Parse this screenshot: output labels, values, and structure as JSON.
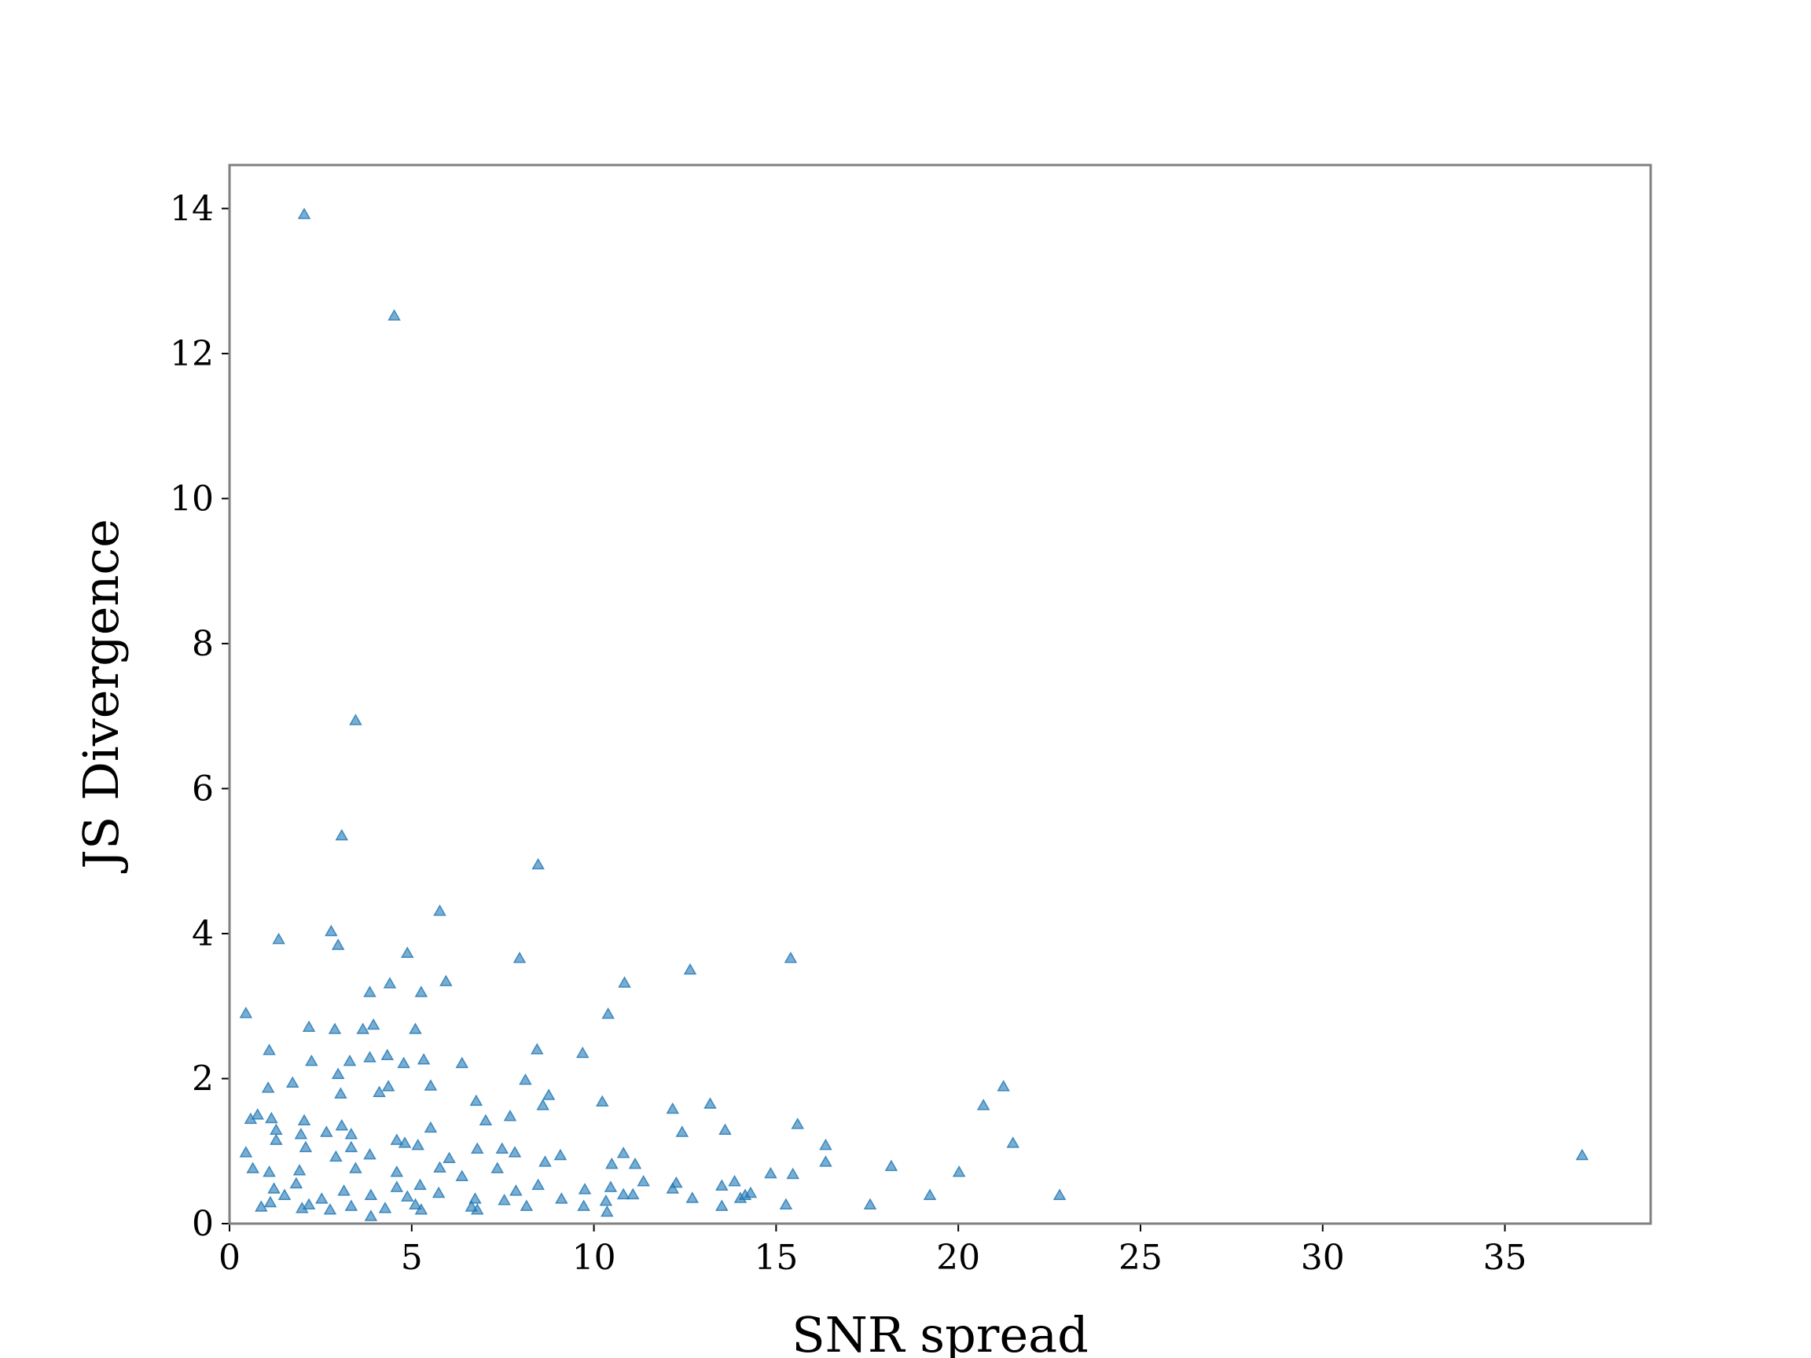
{
  "chart_data": {
    "type": "scatter",
    "x_label": "SNR spread",
    "y_label": "JS Divergence",
    "color": "#1f77b4",
    "marker": "triangle",
    "xlim": [
      0,
      39
    ],
    "ylim": [
      0,
      14.6
    ],
    "xticks": [
      0,
      5,
      10,
      15,
      20,
      25,
      30,
      35
    ],
    "yticks": [
      0,
      2,
      4,
      6,
      8,
      10,
      12,
      14
    ],
    "x": [
      2.05,
      4.52,
      3.46,
      3.08,
      8.47,
      5.77,
      1.35,
      2.79,
      2.98,
      4.88,
      7.96,
      15.4,
      12.64,
      10.84,
      5.94,
      4.4,
      3.85,
      5.26,
      0.45,
      10.39,
      2.18,
      3.95,
      2.89,
      3.66,
      5.1,
      8.44,
      1.09,
      9.69,
      3.85,
      4.33,
      5.33,
      2.25,
      3.3,
      4.78,
      6.38,
      2.98,
      8.12,
      1.73,
      5.52,
      21.24,
      1.06,
      4.36,
      3.05,
      4.11,
      8.76,
      6.77,
      10.23,
      13.19,
      8.6,
      20.69,
      12.16,
      0.77,
      7.7,
      0.58,
      1.15,
      2.05,
      7.03,
      15.59,
      3.08,
      5.52,
      13.6,
      1.28,
      12.42,
      2.66,
      3.34,
      1.96,
      1.28,
      4.59,
      21.5,
      16.36,
      4.81,
      2.09,
      6.8,
      7.48,
      5.17,
      3.34,
      10.81,
      0.45,
      37.12,
      9.08,
      2.92,
      6.03,
      3.85,
      7.83,
      8.66,
      16.36,
      11.13,
      10.49,
      18.16,
      5.77,
      7.35,
      0.64,
      3.46,
      1.92,
      20.02,
      4.59,
      14.85,
      15.46,
      6.38,
      1.09,
      11.36,
      13.86,
      12.26,
      1.83,
      8.47,
      5.23,
      13.51,
      12.16,
      10.46,
      4.59,
      9.75,
      1.22,
      3.14,
      7.86,
      14.3,
      14.15,
      19.22,
      22.78,
      14.02,
      12.7,
      10.81,
      11.07,
      1.51,
      3.88,
      5.74,
      2.53,
      6.74,
      9.11,
      4.88,
      10.33,
      7.54,
      15.27,
      17.58,
      13.51,
      9.72,
      1.12,
      2.18,
      0.87,
      3.34,
      5.1,
      8.15,
      6.64,
      4.27,
      1.99,
      10.36,
      6.8,
      5.26,
      2.76,
      3.88
    ],
    "values": [
      13.92,
      12.52,
      6.94,
      5.35,
      4.95,
      4.31,
      3.92,
      4.03,
      3.84,
      3.73,
      3.66,
      3.66,
      3.5,
      3.32,
      3.34,
      3.31,
      3.19,
      3.19,
      2.9,
      2.89,
      2.71,
      2.74,
      2.68,
      2.68,
      2.68,
      2.4,
      2.39,
      2.35,
      2.29,
      2.32,
      2.26,
      2.24,
      2.24,
      2.21,
      2.21,
      2.06,
      1.98,
      1.94,
      1.9,
      1.89,
      1.87,
      1.89,
      1.79,
      1.81,
      1.77,
      1.69,
      1.68,
      1.65,
      1.63,
      1.63,
      1.58,
      1.5,
      1.48,
      1.44,
      1.45,
      1.42,
      1.42,
      1.37,
      1.35,
      1.32,
      1.29,
      1.29,
      1.26,
      1.26,
      1.23,
      1.23,
      1.15,
      1.15,
      1.11,
      1.08,
      1.11,
      1.05,
      1.03,
      1.03,
      1.08,
      1.05,
      0.97,
      0.98,
      0.94,
      0.94,
      0.92,
      0.9,
      0.95,
      0.98,
      0.85,
      0.85,
      0.82,
      0.82,
      0.79,
      0.77,
      0.76,
      0.76,
      0.76,
      0.73,
      0.71,
      0.71,
      0.69,
      0.68,
      0.65,
      0.71,
      0.58,
      0.58,
      0.56,
      0.55,
      0.53,
      0.53,
      0.52,
      0.48,
      0.5,
      0.5,
      0.47,
      0.48,
      0.45,
      0.45,
      0.42,
      0.39,
      0.39,
      0.39,
      0.35,
      0.35,
      0.4,
      0.4,
      0.39,
      0.39,
      0.42,
      0.34,
      0.34,
      0.34,
      0.37,
      0.31,
      0.32,
      0.26,
      0.26,
      0.24,
      0.24,
      0.29,
      0.26,
      0.23,
      0.24,
      0.26,
      0.24,
      0.23,
      0.21,
      0.21,
      0.16,
      0.19,
      0.19,
      0.19,
      0.1
    ]
  }
}
